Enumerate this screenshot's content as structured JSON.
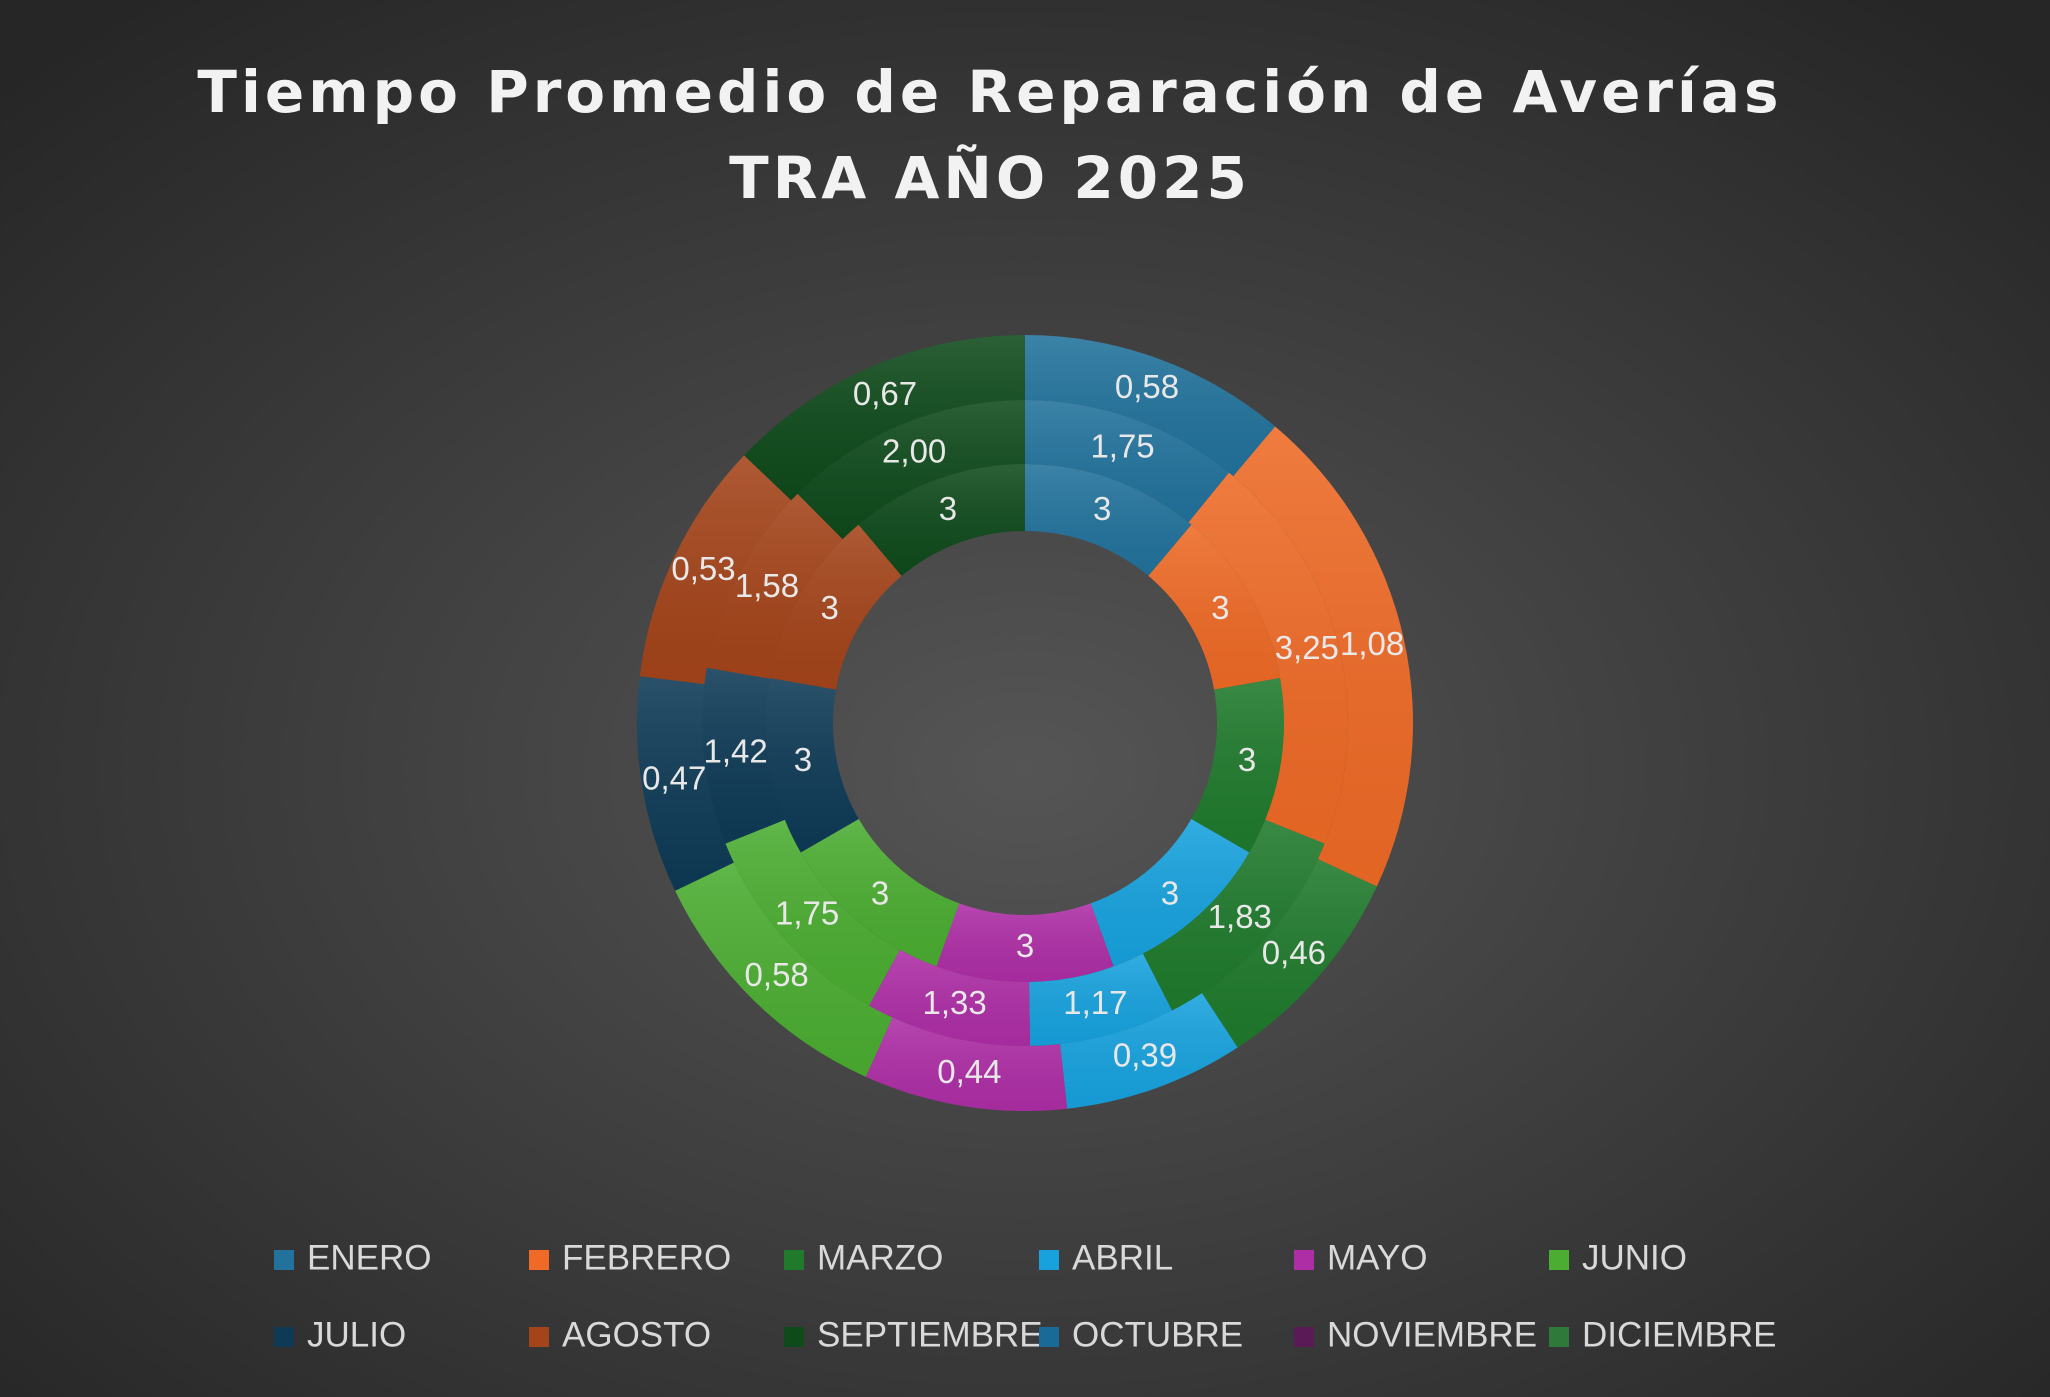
{
  "chart_data": {
    "type": "doughnut",
    "title": "Tiempo Promedio de Reparación de Averías",
    "subtitle": "TRA AÑO 2025",
    "categories": [
      "ENERO",
      "FEBRERO",
      "MARZO",
      "ABRIL",
      "MAYO",
      "JUNIO",
      "JULIO",
      "AGOSTO",
      "SEPTIEMBRE",
      "OCTUBRE",
      "NOVIEMBRE",
      "DICIEMBRE"
    ],
    "colors": [
      "#22729c",
      "#ee6a26",
      "#1f7a2c",
      "#17a2de",
      "#ae2ea6",
      "#4bad31",
      "#0e3a56",
      "#a4441a",
      "#0f4a1b",
      "#1a6a98",
      "#5a1a56",
      "#2f7a3a"
    ],
    "series": [
      {
        "values": [
          3,
          3,
          3,
          3,
          3,
          3,
          3,
          3,
          3,
          null,
          null,
          null
        ]
      },
      {
        "values": [
          1.75,
          3.25,
          1.83,
          1.17,
          1.33,
          1.75,
          1.42,
          1.58,
          2.0,
          null,
          null,
          null
        ],
        "value_labels": [
          "1,75",
          "3,25",
          "1,83",
          "1,17",
          "1,33",
          "1,75",
          "1,42",
          "1,58",
          "2,00",
          null,
          null,
          null
        ]
      },
      {
        "values": [
          0.58,
          1.08,
          0.46,
          0.39,
          0.44,
          0.58,
          0.47,
          0.53,
          0.67,
          null,
          null,
          null
        ],
        "value_labels": [
          "0,58",
          "1,08",
          "0,46",
          "0,39",
          "0,44",
          "0,58",
          "0,47",
          "0,53",
          "0,67",
          null,
          null,
          null
        ]
      }
    ],
    "legend": "bottom"
  }
}
